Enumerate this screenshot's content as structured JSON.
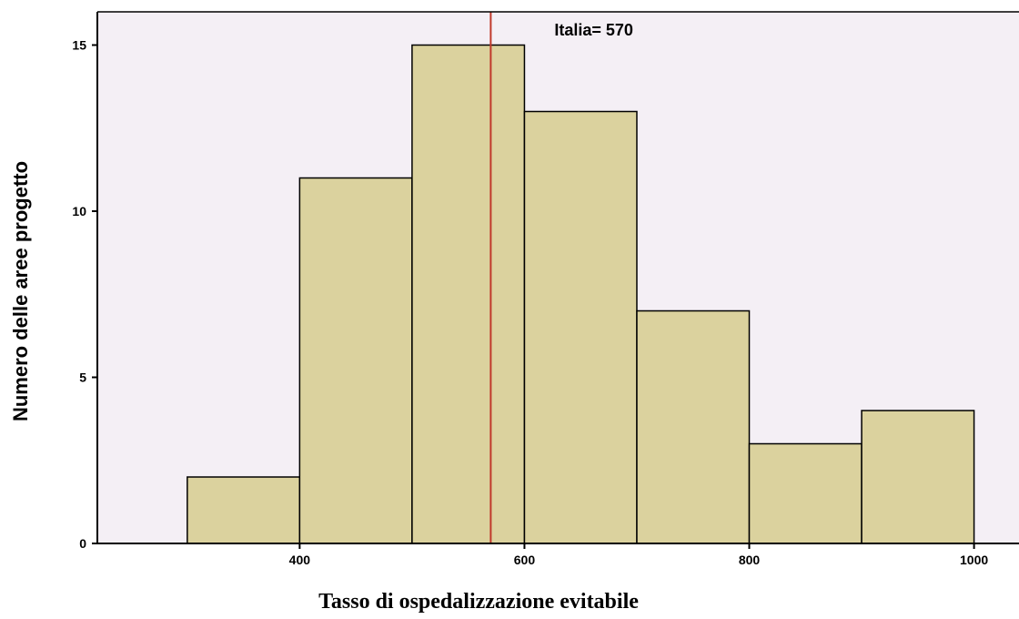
{
  "chart_data": {
    "type": "bar",
    "subtype": "histogram",
    "bins": [
      {
        "from": 300,
        "to": 400,
        "count": 2
      },
      {
        "from": 400,
        "to": 500,
        "count": 11
      },
      {
        "from": 500,
        "to": 600,
        "count": 15
      },
      {
        "from": 600,
        "to": 700,
        "count": 13
      },
      {
        "from": 700,
        "to": 800,
        "count": 7
      },
      {
        "from": 800,
        "to": 900,
        "count": 3
      },
      {
        "from": 900,
        "to": 1000,
        "count": 4
      }
    ],
    "xlabel": "Tasso di ospedalizzazione evitabile",
    "ylabel": "Numero delle aree progetto",
    "xlim": [
      220,
      1040
    ],
    "ylim": [
      0,
      16
    ],
    "xticks": [
      "400",
      "600",
      "800",
      "1000"
    ],
    "yticks": [
      "0",
      "5",
      "10",
      "15"
    ],
    "reference_line": {
      "value": 570,
      "label": "Italia= 570",
      "color": "#c0392b"
    },
    "colors": {
      "bar_fill": "#dbd29e",
      "plot_background": "#f4eff5",
      "bar_edge": "#000000"
    },
    "grid": false
  }
}
